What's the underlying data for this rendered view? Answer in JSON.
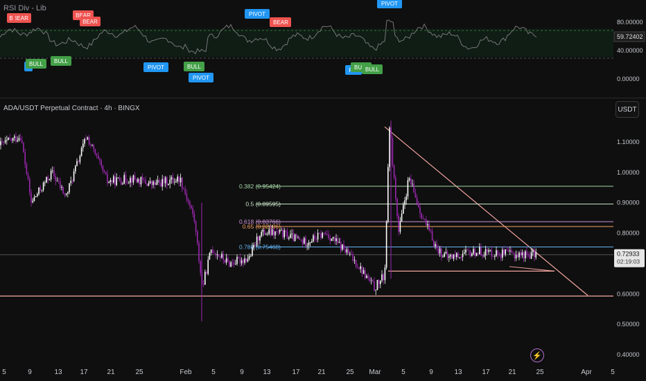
{
  "indicator": {
    "title": "RSI Div - Lib"
  },
  "symbol": {
    "title": "ADA/USDT Perpetual Contract · 4h · BINGX",
    "currency": "USDT"
  },
  "rsi_axis": [
    "80.00000",
    "40.00000",
    "0.00000"
  ],
  "rsi_last": "59.72402",
  "rsi_labels": [
    {
      "text": "BEAR",
      "kind": "bear"
    },
    {
      "text": "B",
      "kind": "bear"
    },
    {
      "text": "BEAR",
      "kind": "bear"
    },
    {
      "text": "BEAR",
      "kind": "bear"
    },
    {
      "text": "PIVOT",
      "kind": "pivot"
    },
    {
      "text": "B",
      "kind": "bear"
    },
    {
      "text": "BEAR",
      "kind": "bear"
    },
    {
      "text": "PIVOT",
      "kind": "pivot"
    },
    {
      "text": "P",
      "kind": "pivot"
    },
    {
      "text": "BULL",
      "kind": "bull"
    },
    {
      "text": "BULL",
      "kind": "bull"
    },
    {
      "text": "PIVOT",
      "kind": "pivot"
    },
    {
      "text": "BULL",
      "kind": "bull"
    },
    {
      "text": "PIVOT",
      "kind": "pivot"
    },
    {
      "text": "PIV",
      "kind": "pivot"
    },
    {
      "text": "BULL",
      "kind": "bull"
    },
    {
      "text": "BULL",
      "kind": "bull"
    }
  ],
  "price_axis": [
    "1.10000",
    "1.00000",
    "0.90000",
    "0.80000",
    "0.70000",
    "0.60000",
    "0.50000",
    "0.40000"
  ],
  "last_price": "0.72933",
  "countdown": "02:19:03",
  "fib": [
    {
      "label": "0.382 (0.95424)",
      "value": 0.95424,
      "color": "#a5d6a7"
    },
    {
      "label": "0.5 (0.89595)",
      "value": 0.89595,
      "color": "#c8e6c9"
    },
    {
      "label": "0.618 (0.83766)",
      "value": 0.83766,
      "color": "#ce93d8"
    },
    {
      "label": "0.65 (0.82186)",
      "value": 0.82186,
      "color": "#f4a460"
    },
    {
      "label": "0.786 (0.75468)",
      "value": 0.75468,
      "color": "#64b5f6"
    }
  ],
  "x_axis": [
    "5",
    "9",
    "13",
    "17",
    "21",
    "25",
    "Feb",
    "5",
    "9",
    "13",
    "17",
    "21",
    "25",
    "Mar",
    "5",
    "9",
    "13",
    "17",
    "21",
    "25",
    "Apr",
    "5"
  ],
  "colors": {
    "up": "#ffffff",
    "down": "#9c27b0",
    "bull": "#43a047",
    "bear": "#ef5350",
    "pivot": "#2196f3",
    "trend": "#f4a6a0"
  },
  "icons": {
    "alert": "lightning-icon"
  }
}
